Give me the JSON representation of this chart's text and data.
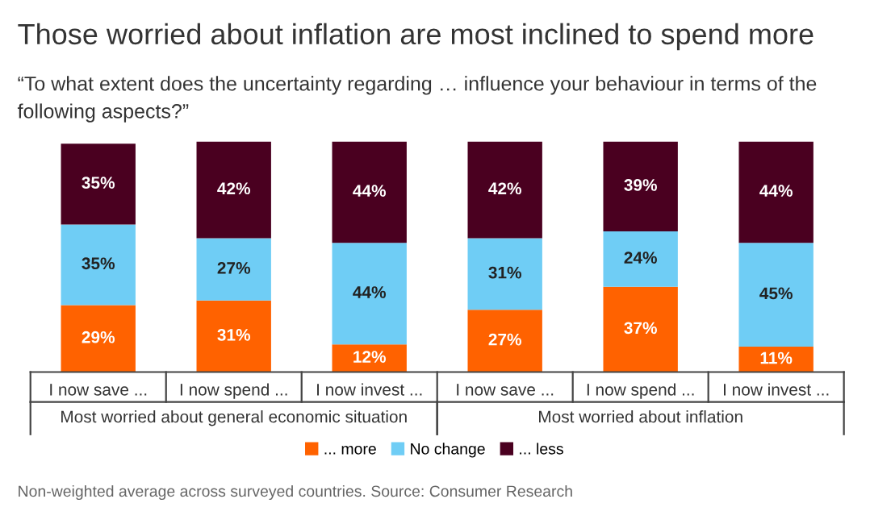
{
  "chart_data": {
    "type": "bar",
    "stacked": true,
    "legend": "bottom",
    "grid": false,
    "title": "Those worried about inflation are most inclined to spend more",
    "subtitle": "“To what extent does the uncertainty regarding … influence your behaviour in terms of the following aspects?”",
    "categories": [
      "I now save ...",
      "I now spend ...",
      "I now invest ...",
      "I now save ...",
      "I now spend ...",
      "I now invest ..."
    ],
    "series": [
      {
        "name": "... more",
        "color": "#ff6200",
        "values": [
          29,
          31,
          12,
          27,
          37,
          11
        ],
        "value_labels": [
          "29%",
          "31%",
          "12%",
          "27%",
          "37%",
          "11%"
        ]
      },
      {
        "name": "No change",
        "color": "#6fcdf5",
        "values": [
          35,
          27,
          44,
          31,
          24,
          45
        ],
        "value_labels": [
          "35%",
          "27%",
          "44%",
          "31%",
          "24%",
          "45%"
        ]
      },
      {
        "name": "... less",
        "color": "#4a0020",
        "values": [
          35,
          42,
          44,
          42,
          39,
          44
        ],
        "value_labels": [
          "35%",
          "42%",
          "44%",
          "42%",
          "39%",
          "44%"
        ]
      }
    ],
    "annotations": [
      "Most worried about general economic situation",
      "Most worried about inflation",
      "Non-weighted average across surveyed countries. Source: Consumer Research"
    ]
  }
}
